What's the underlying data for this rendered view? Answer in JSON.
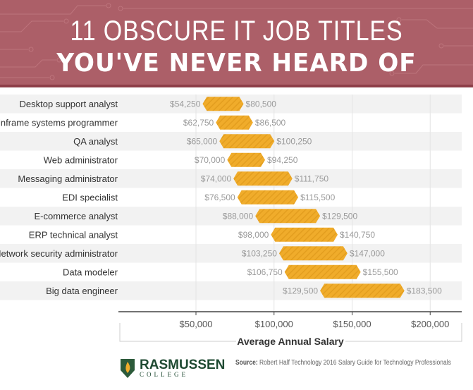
{
  "header": {
    "title_line1": "11 OBSCURE IT JOB TITLES",
    "title_line2": "YOU'VE NEVER HEARD OF"
  },
  "chart_data": {
    "type": "bar",
    "subtype": "floating-range",
    "title": "11 Obscure IT Job Titles You've Never Heard Of",
    "xlabel": "Average Annual Salary",
    "xlim": [
      37500,
      220000
    ],
    "xticks": [
      50000,
      100000,
      150000,
      200000
    ],
    "xtick_labels": [
      "$50,000",
      "$100,000",
      "$150,000",
      "$200,000"
    ],
    "grid": true,
    "categories": [
      "Desktop support analyst",
      "Mainframe systems programmer",
      "QA analyst",
      "Web administrator",
      "Messaging administrator",
      "EDI specialist",
      "E-commerce analyst",
      "ERP technical analyst",
      "Network security administrator",
      "Data modeler",
      "Big data engineer"
    ],
    "series": [
      {
        "name": "low",
        "values": [
          54250,
          62750,
          65000,
          70000,
          74000,
          76500,
          88000,
          98000,
          103250,
          106750,
          129500
        ],
        "labels": [
          "$54,250",
          "$62,750",
          "$65,000",
          "$70,000",
          "$74,000",
          "$76,500",
          "$88,000",
          "$98,000",
          "$103,250",
          "$106,750",
          "$129,500"
        ]
      },
      {
        "name": "high",
        "values": [
          80500,
          86500,
          100250,
          94250,
          111750,
          115500,
          129500,
          140750,
          147000,
          155500,
          183500
        ],
        "labels": [
          "$80,500",
          "$86,500",
          "$100,250",
          "$94,250",
          "$111,750",
          "$115,500",
          "$129,500",
          "$140,750",
          "$147,000",
          "$155,500",
          "$183,500"
        ]
      }
    ],
    "colors": {
      "bar": "#f0ac2b",
      "row_shade": "#f2f2f2"
    }
  },
  "footer": {
    "logo_name": "RASMUSSEN",
    "logo_sub": "COLLEGE",
    "source_label": "Source:",
    "source_text": "Robert Half Technology 2016 Salary Guide for Technology Professionals"
  }
}
